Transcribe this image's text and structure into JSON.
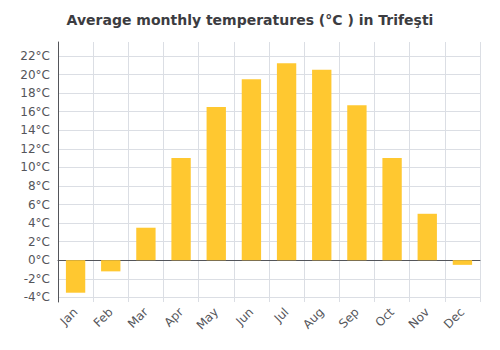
{
  "chart_data": {
    "type": "bar",
    "title": "Average monthly temperatures (°C ) in Trifeşti",
    "categories": [
      "Jan",
      "Feb",
      "Mar",
      "Apr",
      "May",
      "Jun",
      "Jul",
      "Aug",
      "Sep",
      "Oct",
      "Nov",
      "Dec"
    ],
    "values": [
      -3.5,
      -1.2,
      3.5,
      11.0,
      16.5,
      19.5,
      21.2,
      20.5,
      16.7,
      11.0,
      5.0,
      -0.5
    ],
    "color": "#FFC830",
    "ylim": [
      -4.5,
      23.5
    ],
    "yticks": [
      {
        "value": -4,
        "label": "-4°C"
      },
      {
        "value": -2,
        "label": "-2°C"
      },
      {
        "value": 0,
        "label": "0°C"
      },
      {
        "value": 2,
        "label": "2°C"
      },
      {
        "value": 4,
        "label": "4°C"
      },
      {
        "value": 6,
        "label": "6°C"
      },
      {
        "value": 8,
        "label": "8°C"
      },
      {
        "value": 10,
        "label": "10°C"
      },
      {
        "value": 12,
        "label": "12°C"
      },
      {
        "value": 14,
        "label": "14°C"
      },
      {
        "value": 16,
        "label": "16°C"
      },
      {
        "value": 18,
        "label": "18°C"
      },
      {
        "value": 20,
        "label": "20°C"
      },
      {
        "value": 22,
        "label": "22°C"
      }
    ],
    "grid": true
  }
}
